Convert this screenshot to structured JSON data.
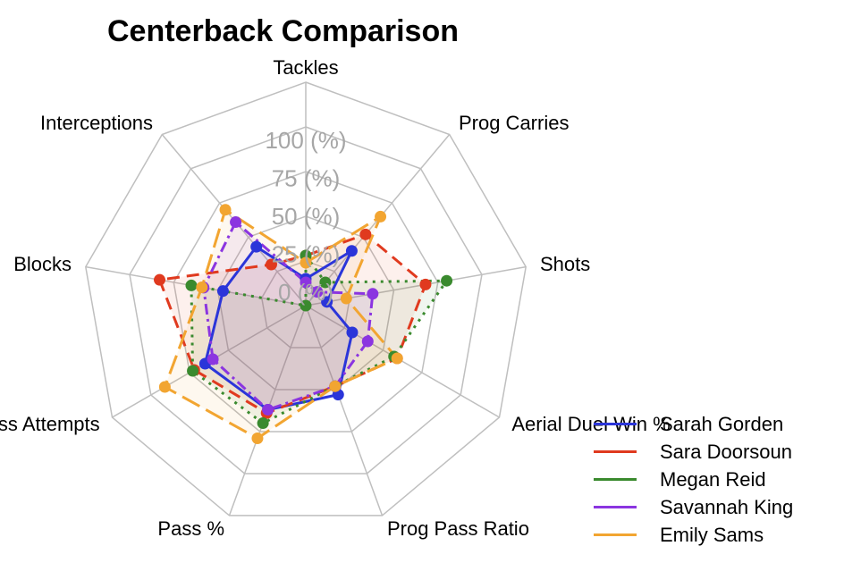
{
  "chart_data": {
    "type": "radar",
    "title": "Centerback Comparison",
    "axes": [
      "Tackles",
      "Prog Carries",
      "Shots",
      "Aerial Duel Win %",
      "Prog Pass Ratio",
      "Pass %",
      "Pass Attempts",
      "Blocks",
      "Interceptions"
    ],
    "radial_ticks": [
      "0 (%)",
      "25 (%)",
      "50 (%)",
      "75 (%)",
      "100 (%)"
    ],
    "range": [
      0,
      100
    ],
    "grid": true,
    "legend_position": "bottom-right",
    "series": [
      {
        "name": "Sarah Gorden",
        "color": "#2b35d9",
        "dash": "solid",
        "values": [
          15,
          40,
          12,
          30,
          53,
          62,
          65,
          47,
          43
        ]
      },
      {
        "name": "Sara Doorsoun",
        "color": "#e03a1f",
        "dash": "long",
        "values": [
          28,
          52,
          68,
          59,
          48,
          64,
          72,
          83,
          30
        ]
      },
      {
        "name": "Megan Reid",
        "color": "#3a8a2e",
        "dash": "dot",
        "values": [
          28,
          17,
          80,
          57,
          48,
          70,
          73,
          65,
          0
        ]
      },
      {
        "name": "Savannah King",
        "color": "#8b35e0",
        "dash": "dotdash",
        "values": [
          13,
          10,
          38,
          40,
          48,
          62,
          60,
          58,
          61
        ]
      },
      {
        "name": "Emily Sams",
        "color": "#f2a531",
        "dash": "longdash",
        "values": [
          24,
          65,
          23,
          59,
          48,
          79,
          91,
          59,
          70
        ]
      }
    ]
  }
}
